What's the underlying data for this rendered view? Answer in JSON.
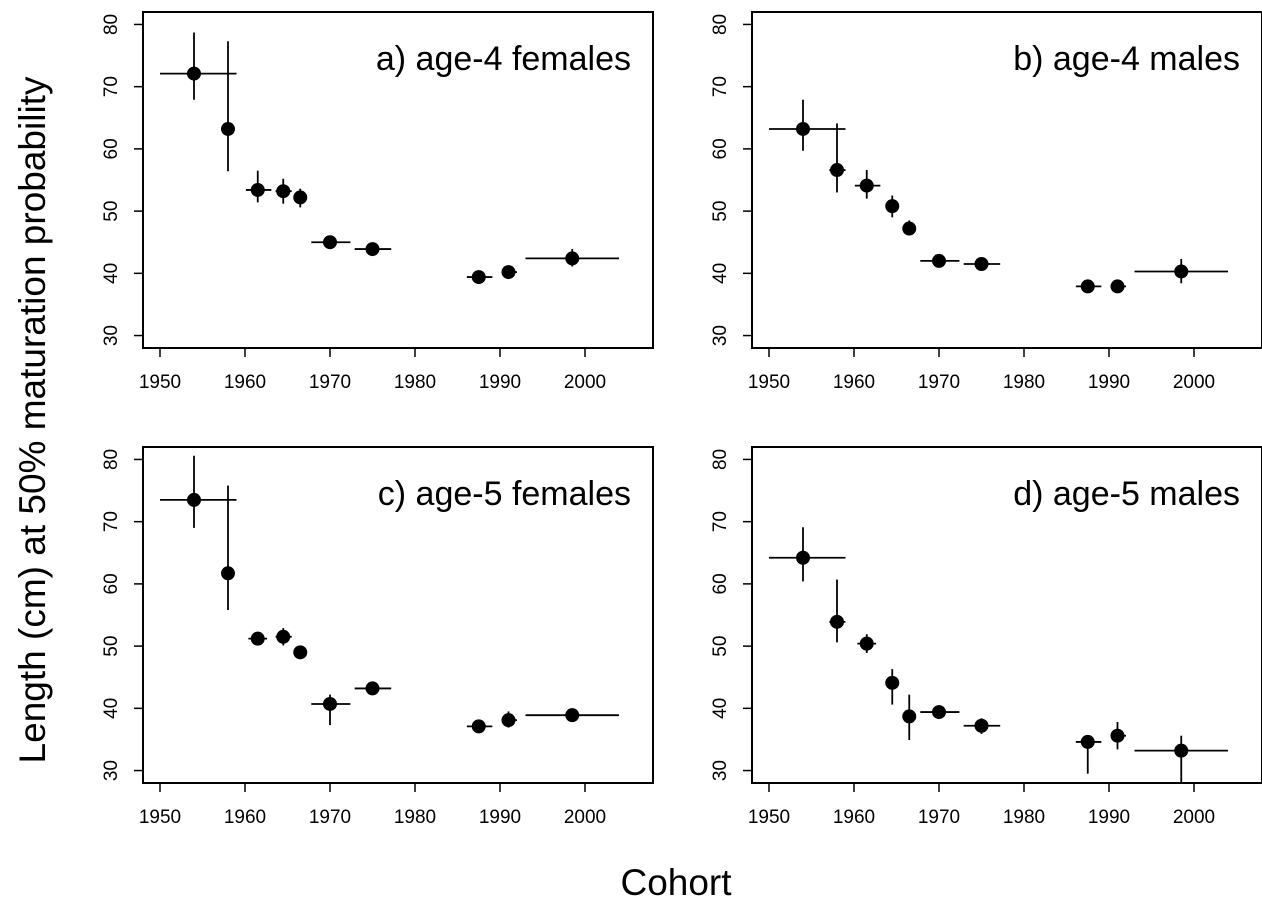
{
  "figure": {
    "ylabel": "Length (cm) at 50% maturation probability",
    "xlabel": "Cohort"
  },
  "chart_data": [
    {
      "type": "scatter",
      "title": "a) age-4 females",
      "xlim": [
        1948,
        2008
      ],
      "ylim": [
        28,
        82
      ],
      "xticks": [
        1950,
        1960,
        1970,
        1980,
        1990,
        2000
      ],
      "yticks": [
        30,
        40,
        50,
        60,
        70,
        80
      ],
      "grid": false,
      "points": [
        {
          "x": 1954,
          "y": 72.1,
          "xerr": [
            1950,
            1959
          ],
          "yerr": [
            67.9,
            78.7
          ]
        },
        {
          "x": 1958,
          "y": 63.2,
          "xerr": [
            1957.3,
            1958.6
          ],
          "yerr": [
            56.4,
            77.3
          ]
        },
        {
          "x": 1961.5,
          "y": 53.4,
          "xerr": [
            1960.1,
            1963.1
          ],
          "yerr": [
            51.4,
            56.5
          ]
        },
        {
          "x": 1964.5,
          "y": 53.2,
          "xerr": [
            1963.6,
            1965.5
          ],
          "yerr": [
            51.2,
            55.2
          ]
        },
        {
          "x": 1966.5,
          "y": 52.2,
          "xerr": [
            1965.8,
            1967.1
          ],
          "yerr": [
            50.6,
            53.6
          ]
        },
        {
          "x": 1970,
          "y": 45.0,
          "xerr": [
            1967.8,
            1972.4
          ],
          "yerr": [
            44.4,
            45.6
          ]
        },
        {
          "x": 1975,
          "y": 43.9,
          "xerr": [
            1972.9,
            1977.2
          ],
          "yerr": [
            43.3,
            44.5
          ]
        },
        {
          "x": 1987.5,
          "y": 39.4,
          "xerr": [
            1986.1,
            1989.1
          ],
          "yerr": [
            38.8,
            40.1
          ]
        },
        {
          "x": 1991,
          "y": 40.2,
          "xerr": [
            1990.2,
            1992.0
          ],
          "yerr": [
            39.5,
            40.9
          ]
        },
        {
          "x": 1998.5,
          "y": 42.4,
          "xerr": [
            1993.0,
            2004.0
          ],
          "yerr": [
            41.1,
            43.9
          ]
        }
      ]
    },
    {
      "type": "scatter",
      "title": "b) age-4 males",
      "xlim": [
        1948,
        2008
      ],
      "ylim": [
        28,
        82
      ],
      "xticks": [
        1950,
        1960,
        1970,
        1980,
        1990,
        2000
      ],
      "yticks": [
        30,
        40,
        50,
        60,
        70,
        80
      ],
      "grid": false,
      "points": [
        {
          "x": 1954,
          "y": 63.2,
          "xerr": [
            1950,
            1959
          ],
          "yerr": [
            59.7,
            67.9
          ]
        },
        {
          "x": 1958,
          "y": 56.6,
          "xerr": [
            1957.1,
            1959.0
          ],
          "yerr": [
            53.0,
            64.1
          ]
        },
        {
          "x": 1961.5,
          "y": 54.1,
          "xerr": [
            1960.1,
            1963.1
          ],
          "yerr": [
            52.0,
            56.6
          ]
        },
        {
          "x": 1964.5,
          "y": 50.8,
          "xerr": [
            1963.8,
            1965.3
          ],
          "yerr": [
            49.0,
            52.5
          ]
        },
        {
          "x": 1966.5,
          "y": 47.2,
          "xerr": [
            1965.8,
            1967.1
          ],
          "yerr": [
            46.1,
            48.5
          ]
        },
        {
          "x": 1970,
          "y": 42.0,
          "xerr": [
            1967.8,
            1972.4
          ],
          "yerr": [
            41.4,
            42.6
          ]
        },
        {
          "x": 1975,
          "y": 41.5,
          "xerr": [
            1972.9,
            1977.2
          ],
          "yerr": [
            40.9,
            42.1
          ]
        },
        {
          "x": 1987.5,
          "y": 37.9,
          "xerr": [
            1986.1,
            1989.1
          ],
          "yerr": [
            37.3,
            38.4
          ]
        },
        {
          "x": 1991,
          "y": 37.9,
          "xerr": [
            1990.2,
            1992.0
          ],
          "yerr": [
            37.3,
            38.4
          ]
        },
        {
          "x": 1998.5,
          "y": 40.3,
          "xerr": [
            1993.0,
            2004.0
          ],
          "yerr": [
            38.4,
            42.3
          ]
        }
      ]
    },
    {
      "type": "scatter",
      "title": "c) age-5 females",
      "xlim": [
        1948,
        2008
      ],
      "ylim": [
        28,
        82
      ],
      "xticks": [
        1950,
        1960,
        1970,
        1980,
        1990,
        2000
      ],
      "yticks": [
        30,
        40,
        50,
        60,
        70,
        80
      ],
      "grid": false,
      "points": [
        {
          "x": 1954,
          "y": 73.5,
          "xerr": [
            1950,
            1959
          ],
          "yerr": [
            69.0,
            80.6
          ]
        },
        {
          "x": 1958,
          "y": 61.7,
          "xerr": [
            1957.3,
            1958.6
          ],
          "yerr": [
            55.8,
            75.8
          ]
        },
        {
          "x": 1961.5,
          "y": 51.2,
          "xerr": [
            1960.4,
            1962.6
          ],
          "yerr": [
            50.1,
            52.3
          ]
        },
        {
          "x": 1964.5,
          "y": 51.5,
          "xerr": [
            1963.6,
            1965.5
          ],
          "yerr": [
            50.1,
            52.9
          ]
        },
        {
          "x": 1966.5,
          "y": 49.0,
          "xerr": [
            1965.8,
            1967.1
          ],
          "yerr": [
            48.2,
            49.8
          ]
        },
        {
          "x": 1970,
          "y": 40.7,
          "xerr": [
            1967.8,
            1972.4
          ],
          "yerr": [
            37.3,
            42.2
          ]
        },
        {
          "x": 1975,
          "y": 43.2,
          "xerr": [
            1972.9,
            1977.2
          ],
          "yerr": [
            42.6,
            43.8
          ]
        },
        {
          "x": 1987.5,
          "y": 37.1,
          "xerr": [
            1986.1,
            1989.1
          ],
          "yerr": [
            36.4,
            37.9
          ]
        },
        {
          "x": 1991,
          "y": 38.1,
          "xerr": [
            1990.2,
            1992.0
          ],
          "yerr": [
            36.9,
            39.5
          ]
        },
        {
          "x": 1998.5,
          "y": 38.9,
          "xerr": [
            1993.0,
            2004.0
          ],
          "yerr": [
            37.8,
            39.9
          ]
        }
      ]
    },
    {
      "type": "scatter",
      "title": "d) age-5 males",
      "xlim": [
        1948,
        2008
      ],
      "ylim": [
        28,
        82
      ],
      "xticks": [
        1950,
        1960,
        1970,
        1980,
        1990,
        2000
      ],
      "yticks": [
        30,
        40,
        50,
        60,
        70,
        80
      ],
      "grid": false,
      "points": [
        {
          "x": 1954,
          "y": 64.2,
          "xerr": [
            1950,
            1959
          ],
          "yerr": [
            60.4,
            69.1
          ]
        },
        {
          "x": 1958,
          "y": 53.9,
          "xerr": [
            1957.1,
            1959.0
          ],
          "yerr": [
            50.6,
            60.7
          ]
        },
        {
          "x": 1961.5,
          "y": 50.4,
          "xerr": [
            1960.4,
            1962.6
          ],
          "yerr": [
            48.9,
            51.9
          ]
        },
        {
          "x": 1964.5,
          "y": 44.1,
          "xerr": [
            1963.8,
            1965.3
          ],
          "yerr": [
            40.6,
            46.3
          ]
        },
        {
          "x": 1966.5,
          "y": 38.7,
          "xerr": [
            1965.8,
            1967.1
          ],
          "yerr": [
            34.9,
            42.2
          ]
        },
        {
          "x": 1970,
          "y": 39.4,
          "xerr": [
            1967.8,
            1972.4
          ],
          "yerr": [
            38.4,
            40.5
          ]
        },
        {
          "x": 1975,
          "y": 37.2,
          "xerr": [
            1972.9,
            1977.2
          ],
          "yerr": [
            35.9,
            38.4
          ]
        },
        {
          "x": 1987.5,
          "y": 34.6,
          "xerr": [
            1986.1,
            1989.1
          ],
          "yerr": [
            29.5,
            35.4
          ]
        },
        {
          "x": 1991,
          "y": 35.6,
          "xerr": [
            1990.2,
            1992.0
          ],
          "yerr": [
            33.4,
            37.8
          ]
        },
        {
          "x": 1998.5,
          "y": 33.2,
          "xerr": [
            1993.0,
            2004.0
          ],
          "yerr": [
            28.0,
            35.6
          ]
        }
      ]
    }
  ]
}
